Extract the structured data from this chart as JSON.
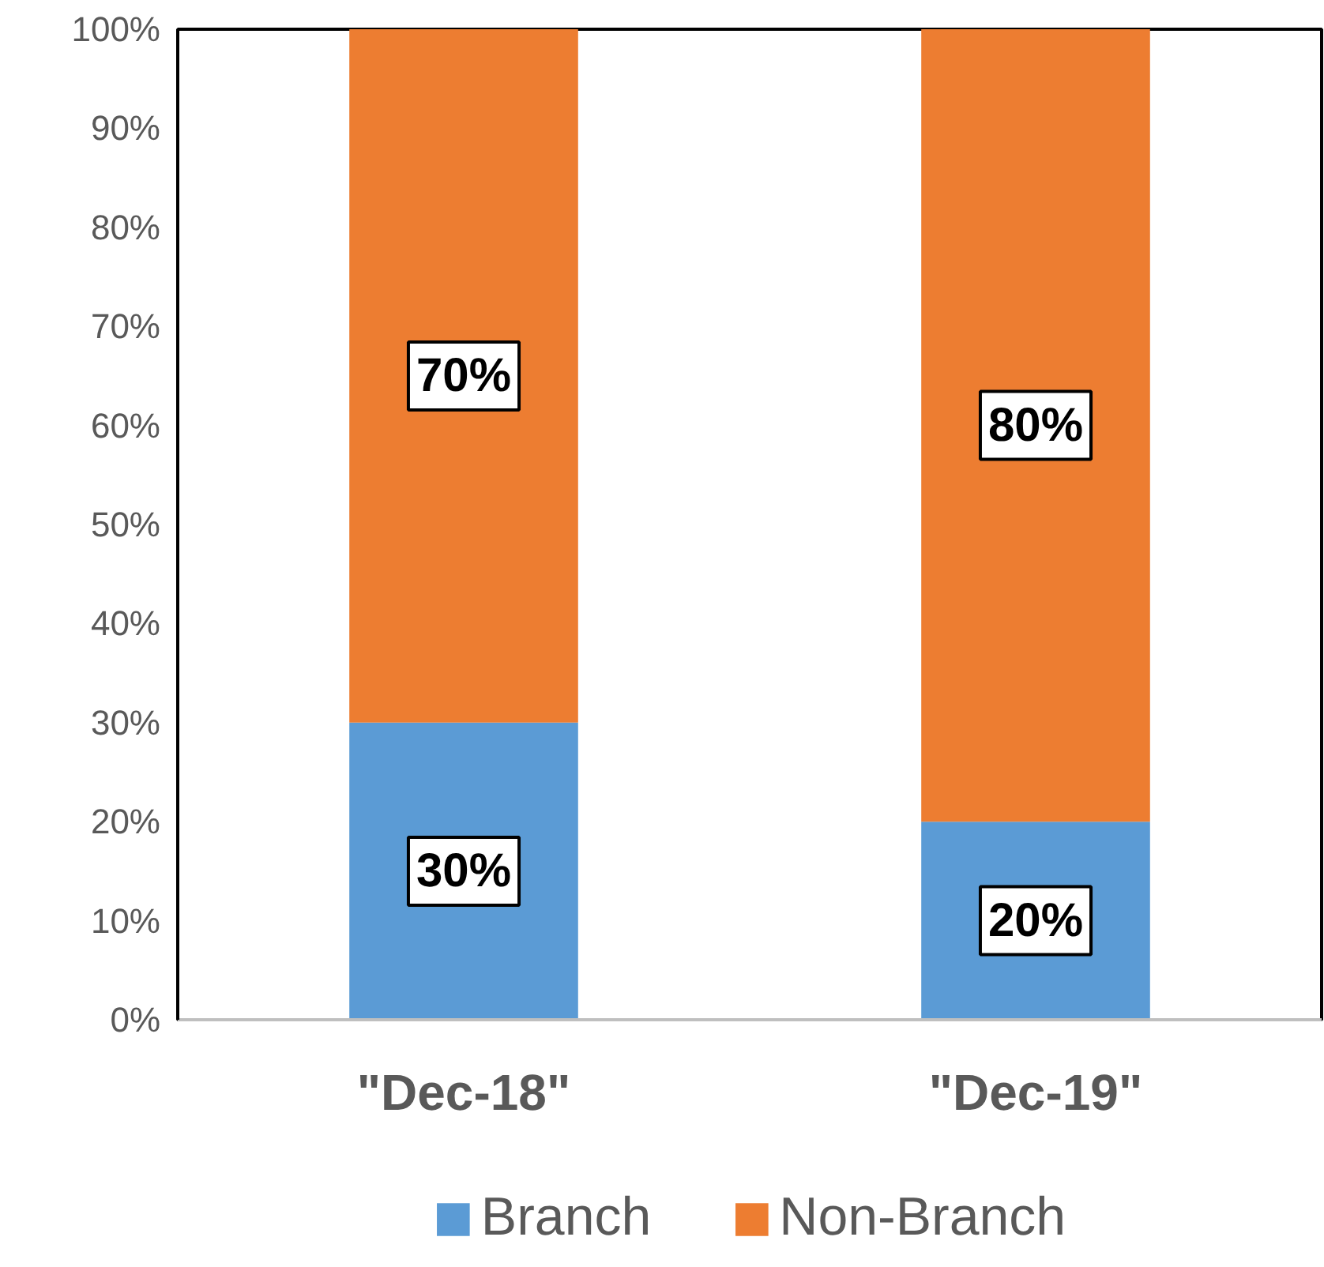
{
  "chart_data": {
    "type": "bar",
    "stacked": true,
    "categories": [
      "\"Dec-18\"",
      "\"Dec-19\""
    ],
    "series": [
      {
        "name": "Branch",
        "color": "#5b9bd5",
        "values": [
          30,
          20
        ],
        "value_labels": [
          "30%",
          "20%"
        ]
      },
      {
        "name": "Non-Branch",
        "color": "#ed7d31",
        "values": [
          70,
          80
        ],
        "value_labels": [
          "70%",
          "80%"
        ]
      }
    ],
    "ylim": [
      0,
      100
    ],
    "yticks": [
      {
        "value": 0,
        "label": "0%"
      },
      {
        "value": 10,
        "label": "10%"
      },
      {
        "value": 20,
        "label": "20%"
      },
      {
        "value": 30,
        "label": "30%"
      },
      {
        "value": 40,
        "label": "40%"
      },
      {
        "value": 50,
        "label": "50%"
      },
      {
        "value": 60,
        "label": "60%"
      },
      {
        "value": 70,
        "label": "70%"
      },
      {
        "value": 80,
        "label": "80%"
      },
      {
        "value": 90,
        "label": "90%"
      },
      {
        "value": 100,
        "label": "100%"
      }
    ],
    "grid": false,
    "legend": "bottom"
  }
}
